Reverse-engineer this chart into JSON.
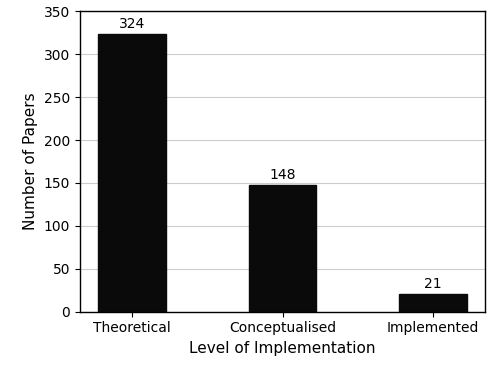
{
  "categories": [
    "Theoretical",
    "Conceptualised",
    "Implemented"
  ],
  "values": [
    324,
    148,
    21
  ],
  "bar_color": "#0a0a0a",
  "xlabel": "Level of Implementation",
  "ylabel": "Number of Papers",
  "ylim": [
    0,
    350
  ],
  "yticks": [
    0,
    50,
    100,
    150,
    200,
    250,
    300,
    350
  ],
  "bar_width": 0.45,
  "annotation_fontsize": 10,
  "label_fontsize": 11,
  "tick_fontsize": 10,
  "grid_color": "#cccccc",
  "background_color": "#ffffff"
}
